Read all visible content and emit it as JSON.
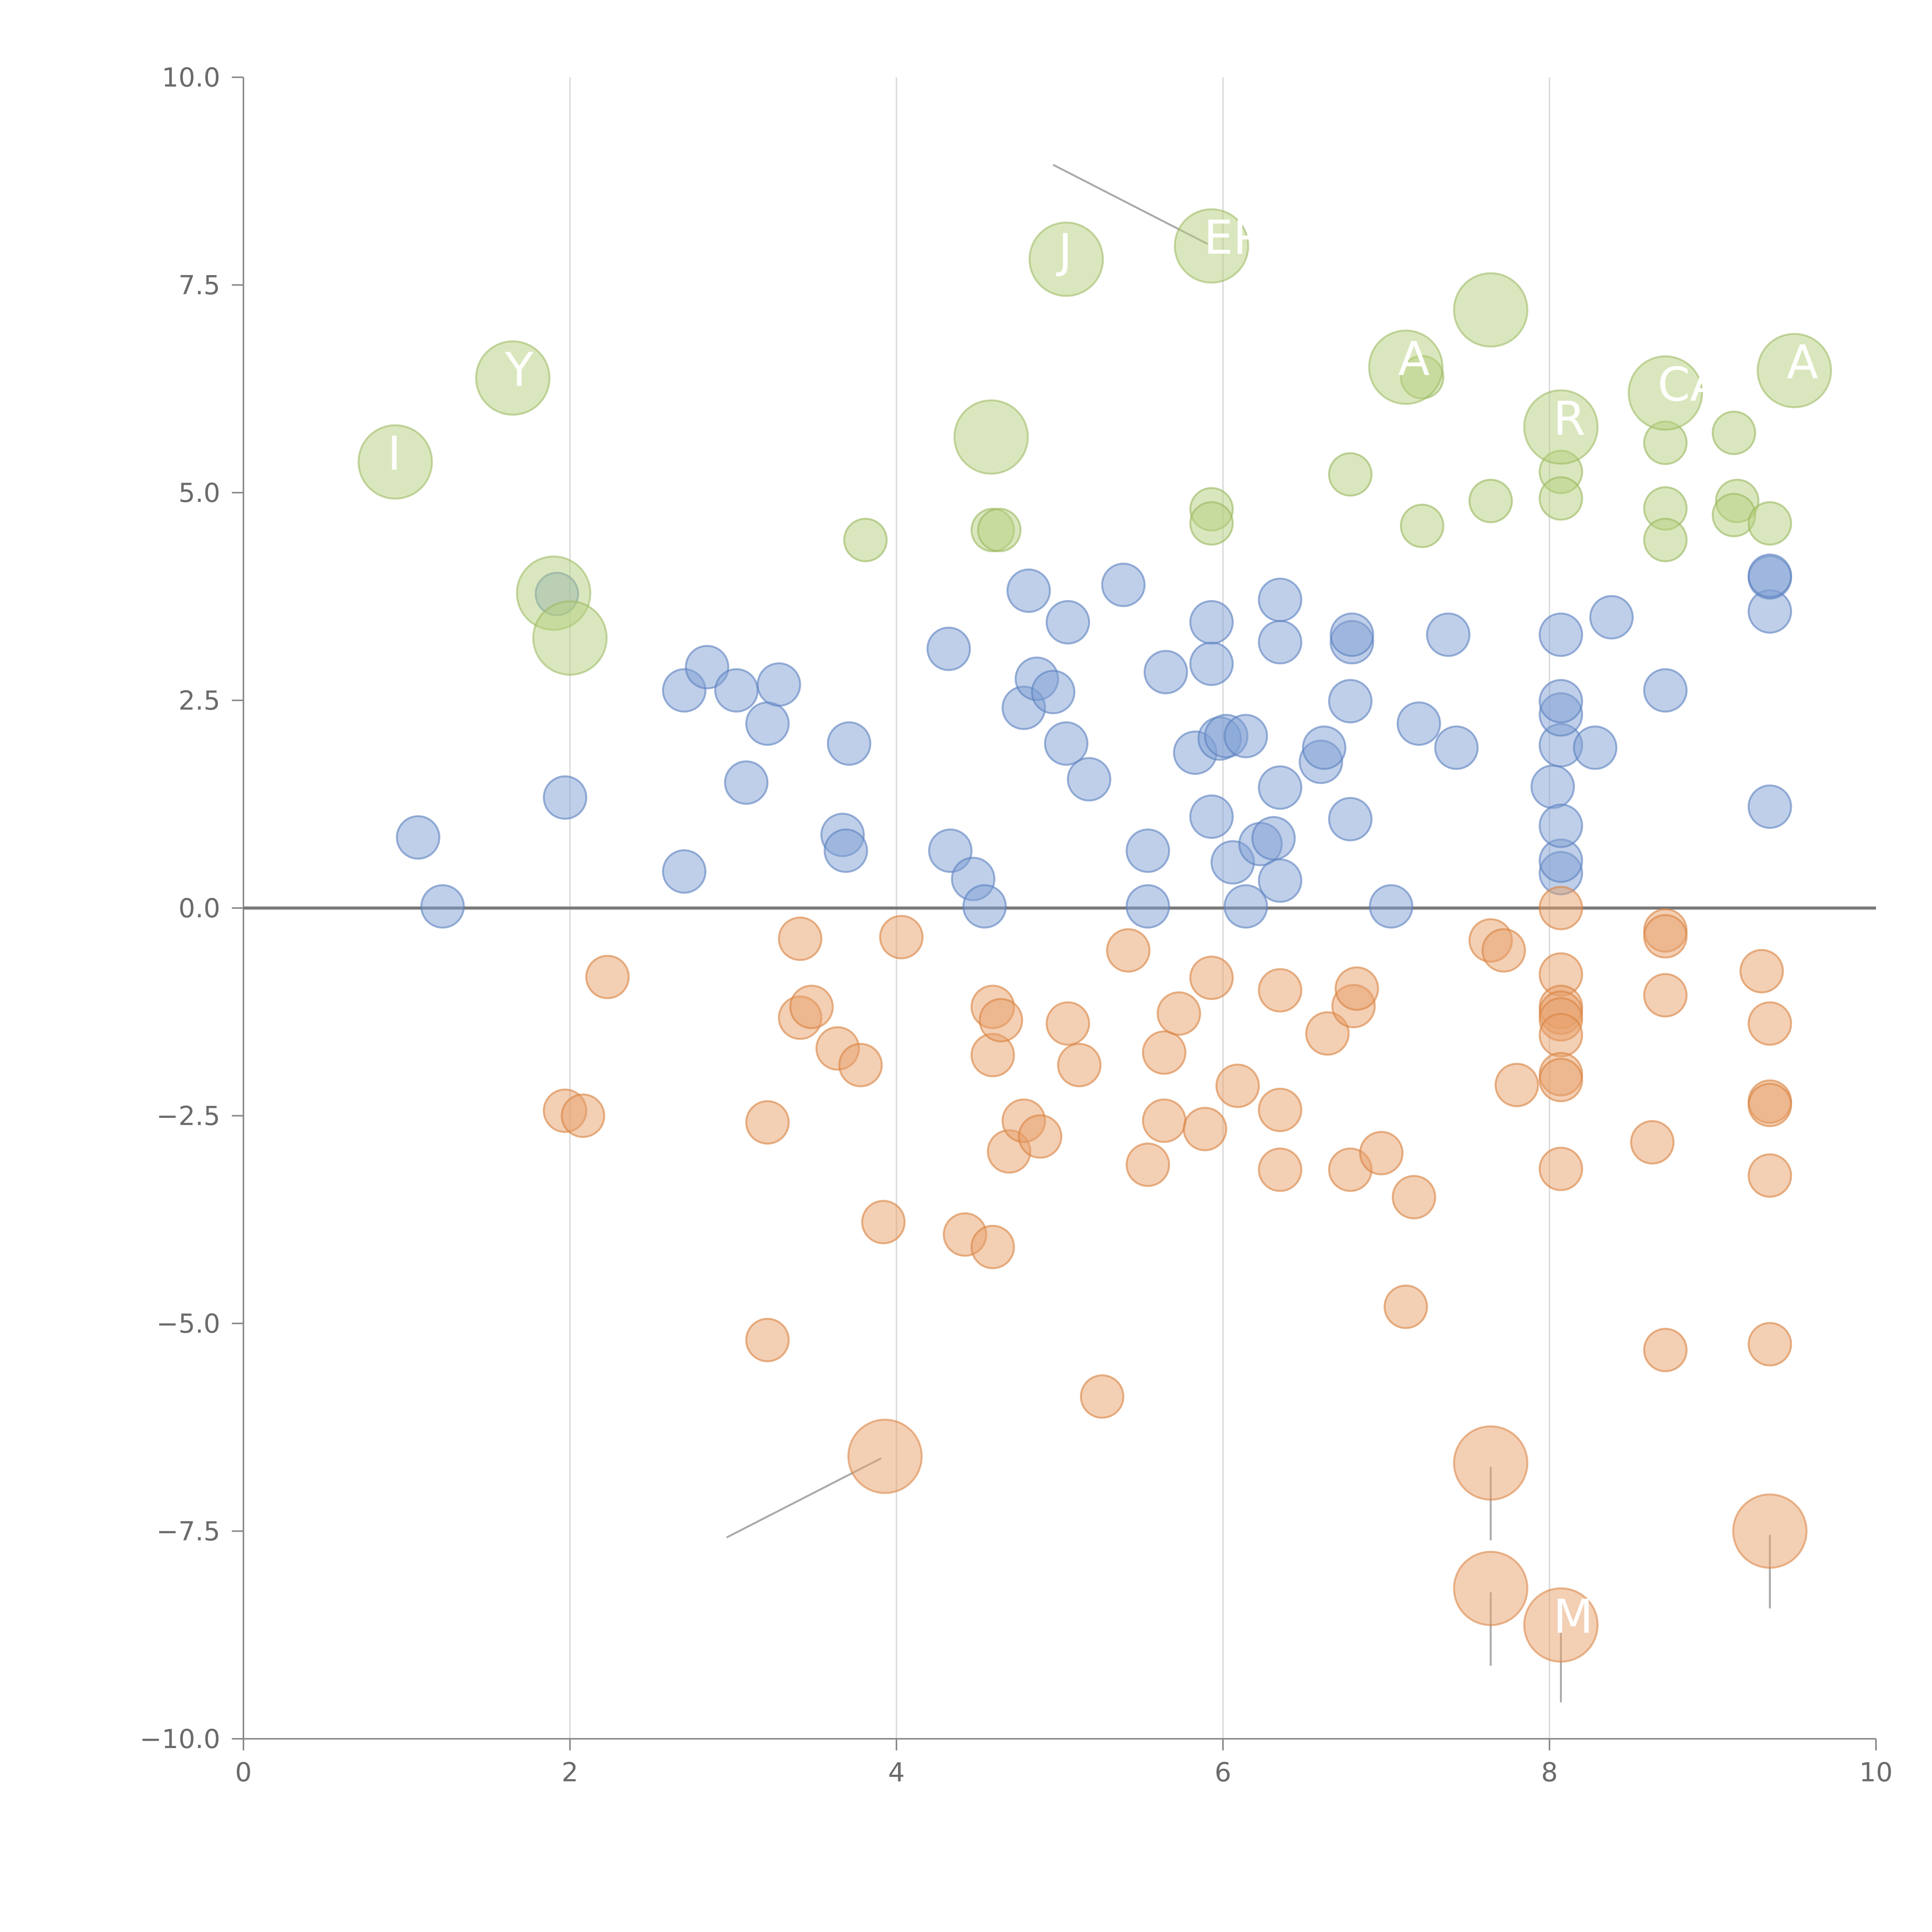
{
  "colors": {
    "blue": "#7f9fd3",
    "blue_stroke": "#5c80c0",
    "orange": "#e8a06a",
    "orange_stroke": "#d9823f",
    "green": "#b5cf7e",
    "green_stroke": "#9ab85f",
    "background": "#ffffff"
  },
  "chart_data": {
    "type": "scatter",
    "title": "",
    "xlabel": "",
    "ylabel": "",
    "xlim": [
      0,
      10
    ],
    "ylim": [
      -10,
      10
    ],
    "grid": "vertical gridlines",
    "x_ticks": [
      "0",
      "2",
      "4",
      "6",
      "8",
      "10"
    ],
    "y_ticks": [
      "−10.0",
      "−7.5",
      "−5.0",
      "−2.5",
      "0.0",
      "2.5",
      "5.0",
      "7.5",
      "10.0"
    ],
    "reference_line_y": 0,
    "series": [
      {
        "name": "positive",
        "color": "blue",
        "points": [
          [
            1.07,
            0.85
          ],
          [
            1.22,
            0.02
          ],
          [
            1.97,
            1.33
          ],
          [
            1.92,
            3.78
          ],
          [
            2.7,
            0.44
          ],
          [
            2.7,
            2.62
          ],
          [
            2.84,
            2.9
          ],
          [
            3.02,
            2.62
          ],
          [
            3.08,
            1.51
          ],
          [
            3.21,
            2.22
          ],
          [
            3.28,
            2.69
          ],
          [
            3.67,
            0.88
          ],
          [
            3.69,
            0.69
          ],
          [
            3.71,
            1.98
          ],
          [
            4.32,
            3.12
          ],
          [
            4.33,
            0.69
          ],
          [
            4.47,
            0.35
          ],
          [
            4.54,
            0.02
          ],
          [
            4.78,
            2.41
          ],
          [
            4.81,
            3.82
          ],
          [
            4.86,
            2.76
          ],
          [
            4.96,
            2.6
          ],
          [
            5.04,
            1.98
          ],
          [
            5.05,
            3.44
          ],
          [
            5.18,
            1.55
          ],
          [
            5.39,
            3.89
          ],
          [
            5.54,
            0.69
          ],
          [
            5.54,
            0.02
          ],
          [
            5.65,
            2.84
          ],
          [
            5.83,
            1.87
          ],
          [
            5.93,
            2.94
          ],
          [
            5.93,
            3.44
          ],
          [
            5.93,
            1.1
          ],
          [
            5.98,
            2.04
          ],
          [
            6.02,
            2.07
          ],
          [
            6.06,
            0.55
          ],
          [
            6.14,
            0.02
          ],
          [
            6.14,
            2.07
          ],
          [
            6.23,
            0.77
          ],
          [
            6.31,
            0.84
          ],
          [
            6.35,
            1.45
          ],
          [
            6.35,
            0.33
          ],
          [
            6.35,
            3.2
          ],
          [
            6.35,
            3.71
          ],
          [
            6.6,
            1.76
          ],
          [
            6.62,
            1.93
          ],
          [
            6.78,
            1.07
          ],
          [
            6.78,
            2.49
          ],
          [
            6.79,
            3.2
          ],
          [
            6.79,
            3.29
          ],
          [
            7.03,
            0.02
          ],
          [
            7.2,
            2.22
          ],
          [
            7.38,
            3.29
          ],
          [
            7.43,
            1.93
          ],
          [
            8.02,
            1.46
          ],
          [
            8.07,
            0.42
          ],
          [
            8.07,
            0.57
          ],
          [
            8.07,
            0.99
          ],
          [
            8.07,
            1.96
          ],
          [
            8.07,
            2.33
          ],
          [
            8.07,
            2.49
          ],
          [
            8.07,
            3.29
          ],
          [
            8.28,
            1.93
          ],
          [
            8.38,
            3.5
          ],
          [
            8.71,
            2.62
          ],
          [
            9.35,
            1.22
          ],
          [
            9.35,
            3.57
          ],
          [
            9.35,
            3.98
          ],
          [
            9.35,
            4.0
          ]
        ]
      },
      {
        "name": "negative",
        "color": "orange",
        "points": [
          [
            1.97,
            -2.44
          ],
          [
            2.08,
            -2.5
          ],
          [
            2.23,
            -0.83
          ],
          [
            3.21,
            -2.58
          ],
          [
            3.21,
            -5.2
          ],
          [
            3.41,
            -0.37
          ],
          [
            3.41,
            -1.32
          ],
          [
            3.48,
            -1.19
          ],
          [
            3.64,
            -1.69
          ],
          [
            3.78,
            -1.89
          ],
          [
            3.92,
            -3.78
          ],
          [
            4.03,
            -0.35
          ],
          [
            4.42,
            -3.93
          ],
          [
            4.59,
            -1.77
          ],
          [
            4.59,
            -1.19
          ],
          [
            4.59,
            -4.08
          ],
          [
            4.64,
            -1.35
          ],
          [
            4.69,
            -2.93
          ],
          [
            4.78,
            -2.56
          ],
          [
            4.88,
            -2.75
          ],
          [
            5.05,
            -1.39
          ],
          [
            5.12,
            -1.89
          ],
          [
            5.26,
            -5.88
          ],
          [
            5.42,
            -0.51
          ],
          [
            5.54,
            -3.09
          ],
          [
            5.64,
            -2.56
          ],
          [
            5.64,
            -1.74
          ],
          [
            5.73,
            -1.27
          ],
          [
            5.89,
            -2.66
          ],
          [
            5.93,
            -0.84
          ],
          [
            6.09,
            -2.14
          ],
          [
            6.35,
            -0.99
          ],
          [
            6.35,
            -2.43
          ],
          [
            6.35,
            -3.15
          ],
          [
            6.64,
            -1.51
          ],
          [
            6.78,
            -3.15
          ],
          [
            6.8,
            -1.18
          ],
          [
            6.82,
            -0.97
          ],
          [
            6.97,
            -2.95
          ],
          [
            7.17,
            -3.48
          ],
          [
            7.12,
            -4.8
          ],
          [
            7.64,
            -0.39
          ],
          [
            7.72,
            -0.51
          ],
          [
            7.8,
            -2.13
          ],
          [
            8.07,
            0.0
          ],
          [
            8.07,
            -0.8
          ],
          [
            8.07,
            -1.19
          ],
          [
            8.07,
            -1.26
          ],
          [
            8.07,
            -1.34
          ],
          [
            8.07,
            -1.53
          ],
          [
            8.07,
            -2.0
          ],
          [
            8.07,
            -2.07
          ],
          [
            8.07,
            -3.14
          ],
          [
            8.63,
            -2.82
          ],
          [
            8.71,
            -1.05
          ],
          [
            8.71,
            -0.27
          ],
          [
            8.71,
            -0.34
          ],
          [
            8.71,
            -5.32
          ],
          [
            9.3,
            -0.76
          ],
          [
            9.35,
            -1.39
          ],
          [
            9.35,
            -2.33
          ],
          [
            9.35,
            -2.37
          ],
          [
            9.35,
            -3.22
          ],
          [
            9.35,
            -5.25
          ]
        ]
      },
      {
        "name": "positive-small",
        "color": "green",
        "points": [
          [
            3.81,
            4.43
          ],
          [
            4.59,
            4.55
          ],
          [
            4.63,
            4.55
          ],
          [
            5.93,
            4.8
          ],
          [
            5.93,
            4.63
          ],
          [
            6.78,
            5.22
          ],
          [
            7.22,
            6.39
          ],
          [
            7.22,
            4.6
          ],
          [
            7.64,
            4.9
          ],
          [
            8.07,
            5.25
          ],
          [
            8.07,
            4.93
          ],
          [
            8.71,
            5.6
          ],
          [
            8.71,
            4.81
          ],
          [
            8.71,
            4.43
          ],
          [
            9.13,
            5.72
          ],
          [
            9.15,
            4.9
          ],
          [
            9.13,
            4.73
          ],
          [
            9.35,
            4.63
          ]
        ]
      }
    ],
    "labeled_points": [
      {
        "series": "green",
        "x": 0.93,
        "y": 5.37,
        "label": "I"
      },
      {
        "series": "green",
        "x": 1.65,
        "y": 6.38,
        "label": "Y"
      },
      {
        "series": "green",
        "x": 1.9,
        "y": 3.79,
        "label": ""
      },
      {
        "series": "green",
        "x": 2.0,
        "y": 3.25,
        "label": ""
      },
      {
        "series": "green",
        "x": 4.58,
        "y": 5.67,
        "label": ""
      },
      {
        "series": "green",
        "x": 5.04,
        "y": 7.81,
        "label": "J"
      },
      {
        "series": "green",
        "x": 5.93,
        "y": 7.97,
        "label": "ER"
      },
      {
        "series": "green",
        "x": 7.12,
        "y": 6.51,
        "label": "A"
      },
      {
        "series": "green",
        "x": 7.64,
        "y": 7.2,
        "label": ""
      },
      {
        "series": "green",
        "x": 8.07,
        "y": 5.79,
        "label": "R"
      },
      {
        "series": "green",
        "x": 8.71,
        "y": 6.2,
        "label": "CA"
      },
      {
        "series": "green",
        "x": 9.5,
        "y": 6.47,
        "label": "A"
      },
      {
        "series": "orange",
        "x": 3.93,
        "y": -6.6,
        "label": ""
      },
      {
        "series": "orange",
        "x": 7.64,
        "y": -6.68,
        "label": ""
      },
      {
        "series": "orange",
        "x": 7.64,
        "y": -8.19,
        "label": ""
      },
      {
        "series": "orange",
        "x": 8.07,
        "y": -8.63,
        "label": "MT"
      },
      {
        "series": "orange",
        "x": 9.35,
        "y": -7.5,
        "label": ""
      }
    ]
  }
}
